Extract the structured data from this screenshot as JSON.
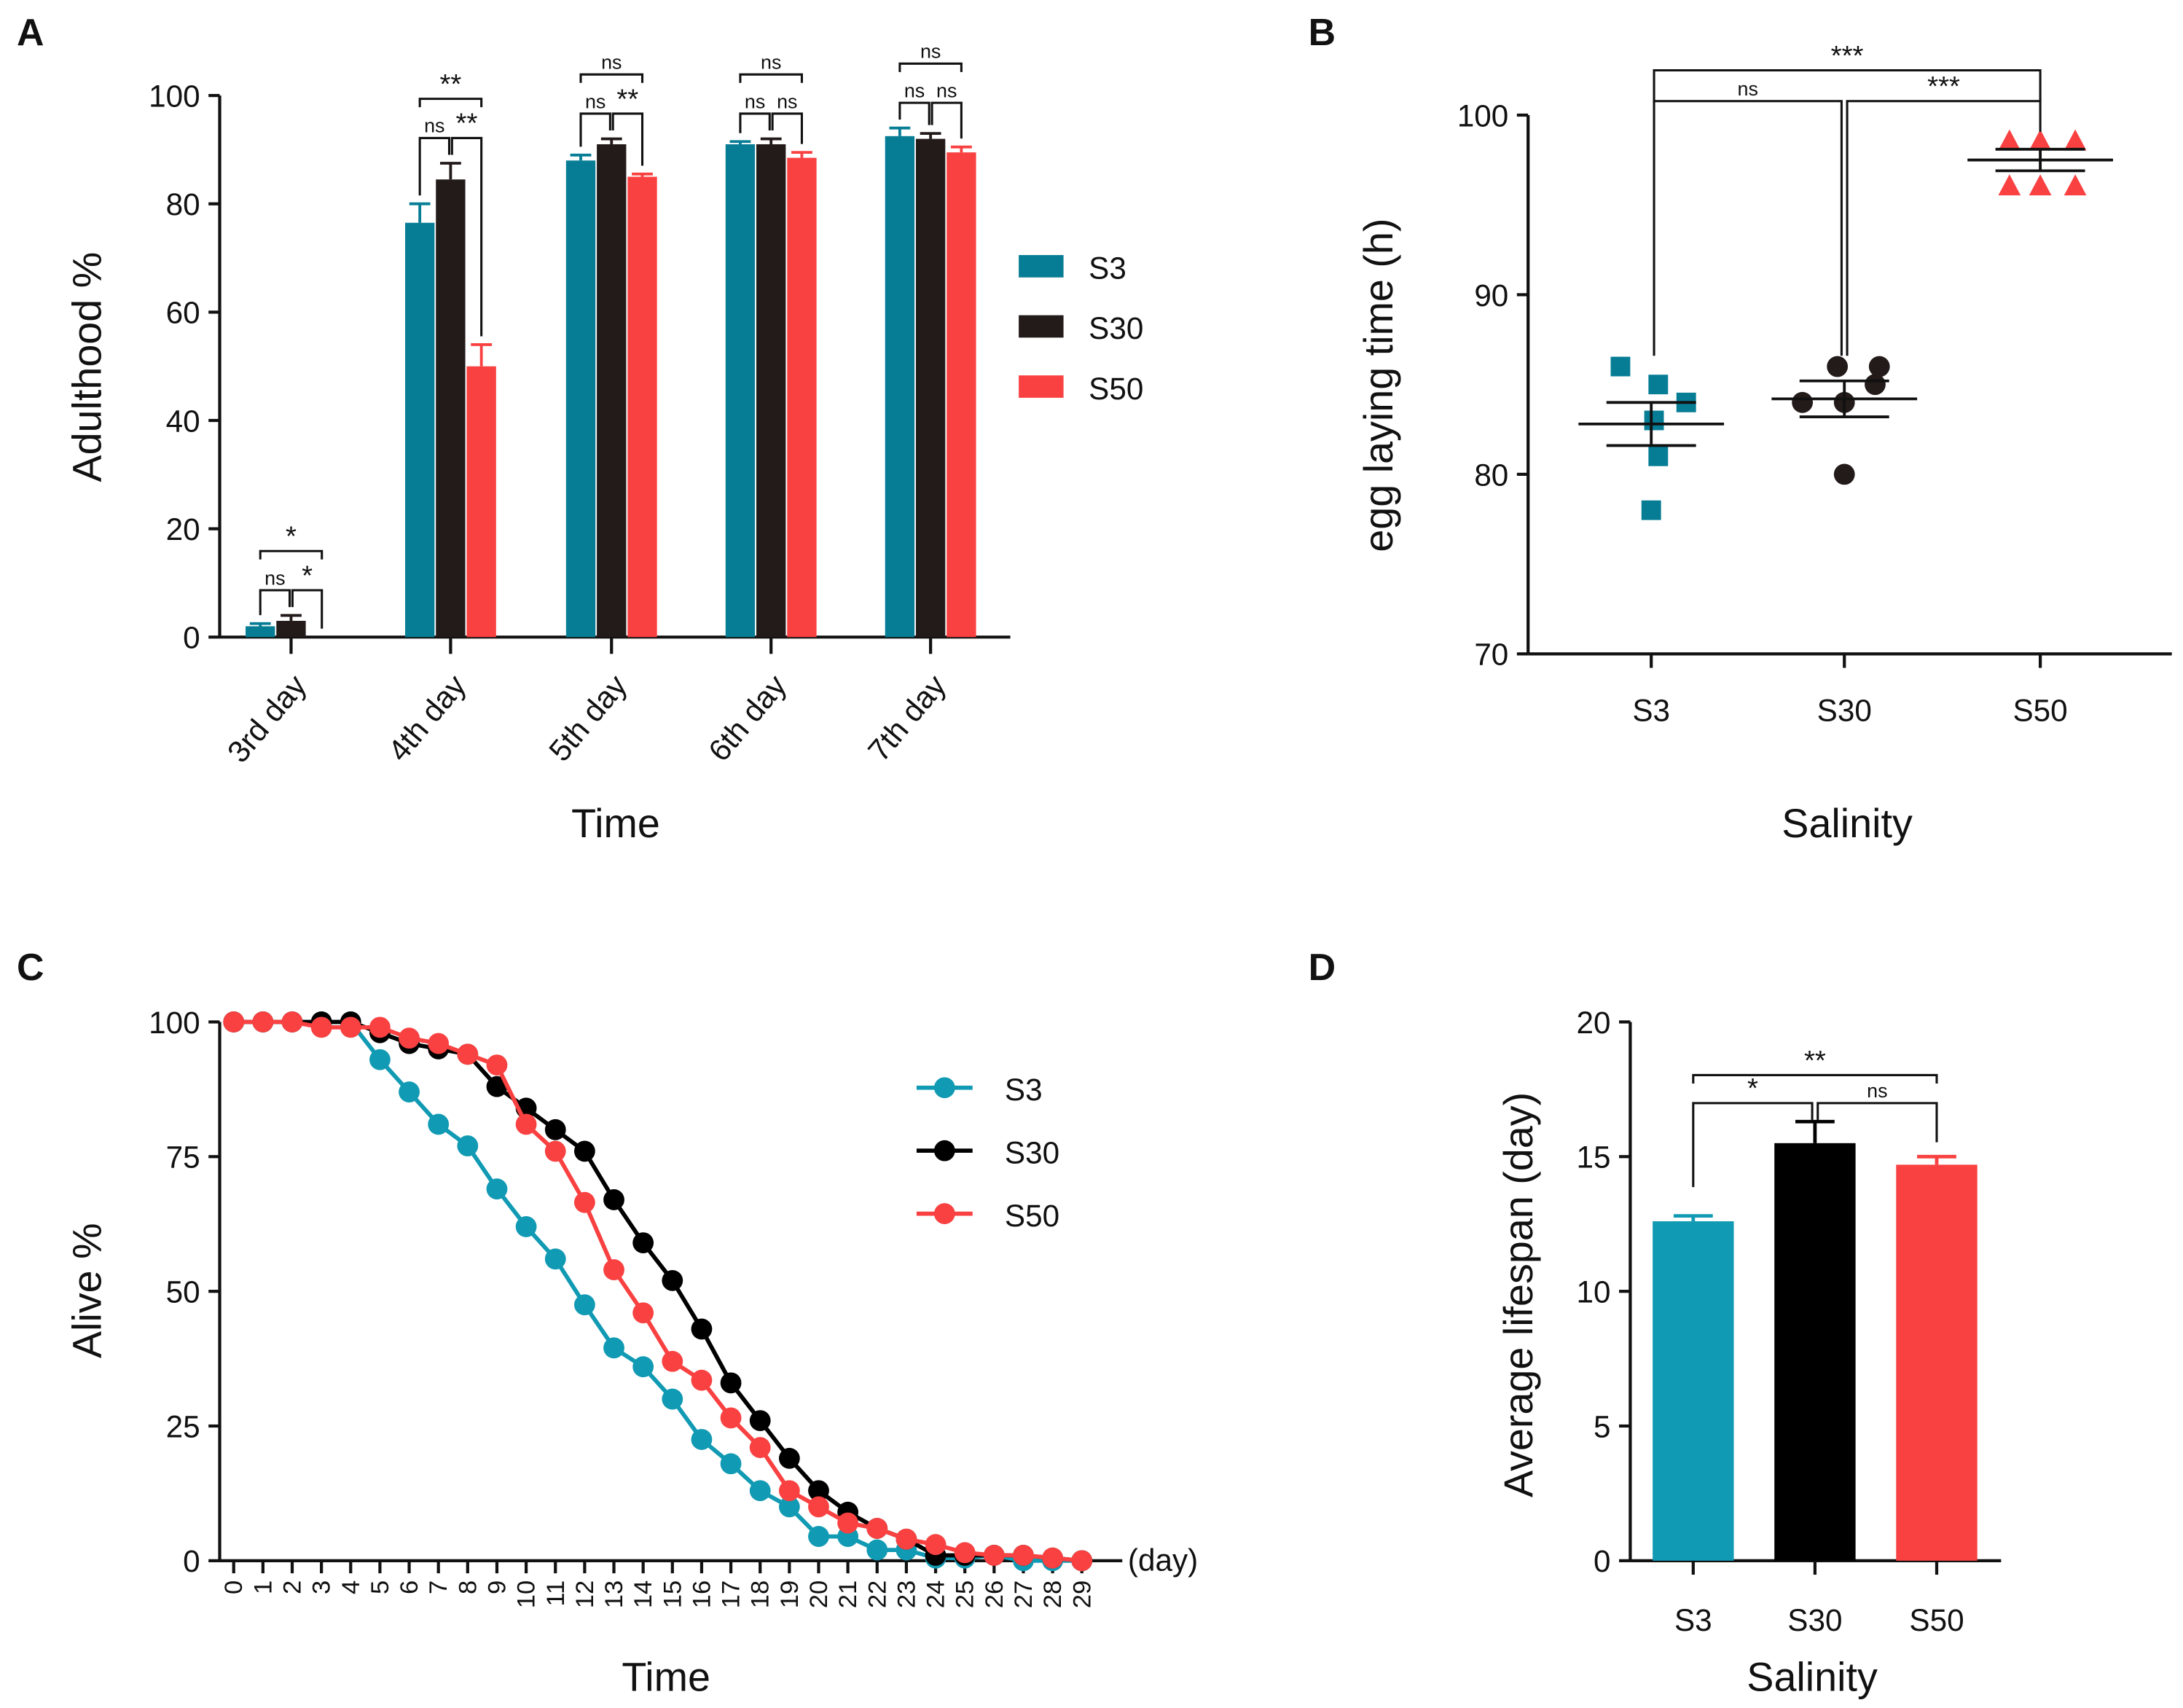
{
  "colors": {
    "S3": "#077d95",
    "S30": "#231a1a",
    "S50": "#f94141",
    "S3_c": "#119ab3",
    "S30_c": "#000000",
    "S50_c": "#f94141"
  },
  "chart_data": [
    {
      "panel": "A",
      "type": "bar",
      "categories": [
        "3rd day",
        "4th day",
        "5th day",
        "6th day",
        "7th day"
      ],
      "xlabel": "Time",
      "ylabel": "Adulthood %",
      "ylim": [
        0,
        100
      ],
      "yticks": [
        "0",
        "20",
        "40",
        "60",
        "80",
        "100"
      ],
      "legend": "right",
      "series": [
        {
          "name": "S3",
          "values": [
            2,
            76.5,
            88,
            91,
            92.5
          ],
          "errors": [
            0.5,
            3.5,
            1,
            0.5,
            1.5
          ]
        },
        {
          "name": "S30",
          "values": [
            3,
            84.5,
            91,
            91,
            92
          ],
          "errors": [
            1,
            3,
            1,
            1,
            1
          ]
        },
        {
          "name": "S50",
          "values": [
            0,
            50,
            85,
            88.5,
            89.5
          ],
          "errors": [
            0,
            4,
            0.5,
            1,
            1
          ]
        }
      ],
      "significance": [
        [
          "ns",
          "*",
          "*"
        ],
        [
          "ns",
          "**",
          "**"
        ],
        [
          "ns",
          "**",
          "ns"
        ],
        [
          "ns",
          "ns",
          "ns"
        ],
        [
          "ns",
          "ns",
          "ns"
        ]
      ]
    },
    {
      "panel": "B",
      "type": "scatter",
      "categories": [
        "S3",
        "S30",
        "S50"
      ],
      "xlabel": "Salinity",
      "ylabel": "egg laying time (h)",
      "ylim": [
        70,
        100
      ],
      "yticks": [
        "70",
        "80",
        "90",
        "100"
      ],
      "series": [
        {
          "name": "S3",
          "values": [
            86,
            85,
            84,
            83,
            81,
            78
          ],
          "mean": 82.8,
          "sem": 1.2
        },
        {
          "name": "S30",
          "values": [
            86,
            86,
            85,
            84,
            84,
            80
          ],
          "mean": 84.2,
          "sem": 1.0
        },
        {
          "name": "S50",
          "values": [
            98.5,
            98.5,
            98.5,
            96,
            96,
            96
          ],
          "mean": 97.5,
          "sem": 0.6
        }
      ],
      "significance": {
        "S3_S30": "ns",
        "S30_S50": "***",
        "S3_S50": "***"
      }
    },
    {
      "panel": "C",
      "type": "line",
      "x": [
        0,
        1,
        2,
        3,
        4,
        5,
        6,
        7,
        8,
        9,
        10,
        11,
        12,
        13,
        14,
        15,
        16,
        17,
        18,
        19,
        20,
        21,
        22,
        23,
        24,
        25,
        26,
        27,
        28,
        29
      ],
      "xlabel": "Time",
      "xunit": "(day)",
      "ylabel": "Alive %",
      "ylim": [
        0,
        100
      ],
      "yticks": [
        "0",
        "25",
        "50",
        "75",
        "100"
      ],
      "legend": "top-right",
      "series": [
        {
          "name": "S3",
          "values": [
            100,
            100,
            100,
            100,
            100,
            93,
            87,
            81,
            77,
            69,
            62,
            56,
            47.5,
            39.5,
            36,
            30,
            22.5,
            18,
            13,
            10,
            4.5,
            4.5,
            2,
            2,
            0.5,
            0.5,
            1,
            0,
            0,
            0
          ]
        },
        {
          "name": "S30",
          "values": [
            100,
            100,
            100,
            100,
            100,
            98,
            96,
            95,
            94,
            88,
            84,
            80,
            76,
            67,
            59,
            52,
            43,
            33,
            26,
            19,
            13,
            9,
            6,
            4,
            1,
            1,
            1,
            1,
            0.5,
            0
          ]
        },
        {
          "name": "S50",
          "values": [
            100,
            100,
            100,
            99,
            99,
            99,
            97,
            96,
            94,
            92,
            81,
            76,
            66.5,
            54,
            46,
            37,
            33.5,
            26.5,
            21,
            13,
            10,
            7,
            6,
            4,
            3,
            1.5,
            1,
            1,
            0.5,
            0
          ]
        }
      ]
    },
    {
      "panel": "D",
      "type": "bar",
      "categories": [
        "S3",
        "S30",
        "S50"
      ],
      "xlabel": "Salinity",
      "ylabel": "Average lifespan (day)",
      "ylim": [
        0,
        20
      ],
      "yticks": [
        "0",
        "5",
        "10",
        "15",
        "20"
      ],
      "values": [
        12.6,
        15.5,
        14.7
      ],
      "errors": [
        0.2,
        0.8,
        0.3
      ],
      "significance": {
        "S3_S30": "*",
        "S30_S50": "ns",
        "S3_S50": "**"
      }
    }
  ]
}
